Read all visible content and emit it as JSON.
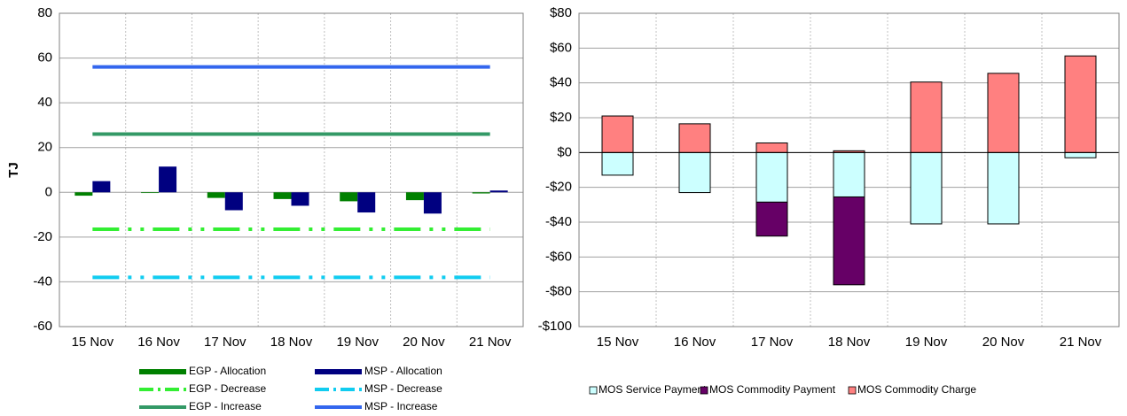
{
  "chart_data": [
    {
      "type": "bar",
      "y_label": "TJ",
      "categories": [
        "15 Nov",
        "16 Nov",
        "17 Nov",
        "18 Nov",
        "19 Nov",
        "20 Nov",
        "21 Nov"
      ],
      "ylim": [
        -60,
        80
      ],
      "yticks": [
        -60,
        -40,
        -20,
        0,
        20,
        40,
        60,
        80
      ],
      "grid": true,
      "legend": "bottom",
      "series": [
        {
          "name": "EGP - Allocation",
          "type": "bar",
          "color": "#008000",
          "values": [
            -1.5,
            -0.3,
            -2.5,
            -3,
            -4,
            -3.5,
            -0.5
          ]
        },
        {
          "name": "MSP - Allocation",
          "type": "bar",
          "color": "#000080",
          "values": [
            5,
            11.5,
            -8,
            -6,
            -9,
            -9.5,
            0.8
          ]
        },
        {
          "name": "EGP - Decrease",
          "type": "line",
          "dash": "dashdot",
          "color": "#33ee33",
          "values": [
            -16.5,
            -16.5,
            -16.5,
            -16.5,
            -16.5,
            -16.5,
            -16.5
          ]
        },
        {
          "name": "MSP - Decrease",
          "type": "line",
          "dash": "dashdot",
          "color": "#11ccf0",
          "values": [
            -38,
            -38,
            -38,
            -38,
            -38,
            -38,
            -38
          ]
        },
        {
          "name": "EGP - Increase",
          "type": "line",
          "color": "#339966",
          "values": [
            26,
            26,
            26,
            26,
            26,
            26,
            26
          ]
        },
        {
          "name": "MSP - Increase",
          "type": "line",
          "color": "#3366ee",
          "values": [
            56,
            56,
            56,
            56,
            56,
            56,
            56
          ]
        }
      ]
    },
    {
      "type": "stacked_bar",
      "categories": [
        "15 Nov",
        "16 Nov",
        "17 Nov",
        "18 Nov",
        "19 Nov",
        "20 Nov",
        "21 Nov"
      ],
      "ylim": [
        -100,
        80
      ],
      "yticks": [
        {
          "value": -100,
          "label": "-$100"
        },
        {
          "value": -80,
          "label": "-$80"
        },
        {
          "value": -60,
          "label": "-$60"
        },
        {
          "value": -40,
          "label": "-$40"
        },
        {
          "value": -20,
          "label": "-$20"
        },
        {
          "value": 0,
          "label": "$0"
        },
        {
          "value": 20,
          "label": "$20"
        },
        {
          "value": 40,
          "label": "$40"
        },
        {
          "value": 60,
          "label": "$60"
        },
        {
          "value": 80,
          "label": "$80"
        }
      ],
      "grid": true,
      "legend": "bottom",
      "series": [
        {
          "name": "MOS Service Payment",
          "color": "#ccffff",
          "values": [
            -13,
            -23,
            -28.5,
            -25.5,
            -41,
            -41,
            -3
          ]
        },
        {
          "name": "MOS Commodity Payment",
          "color": "#660066",
          "values": [
            0,
            0,
            -19.5,
            -50.5,
            0,
            0,
            0
          ]
        },
        {
          "name": "MOS Commodity Charge",
          "color": "#ff8080",
          "values": [
            21,
            16.5,
            5.5,
            1,
            40.5,
            45.5,
            55.5
          ]
        }
      ]
    }
  ]
}
